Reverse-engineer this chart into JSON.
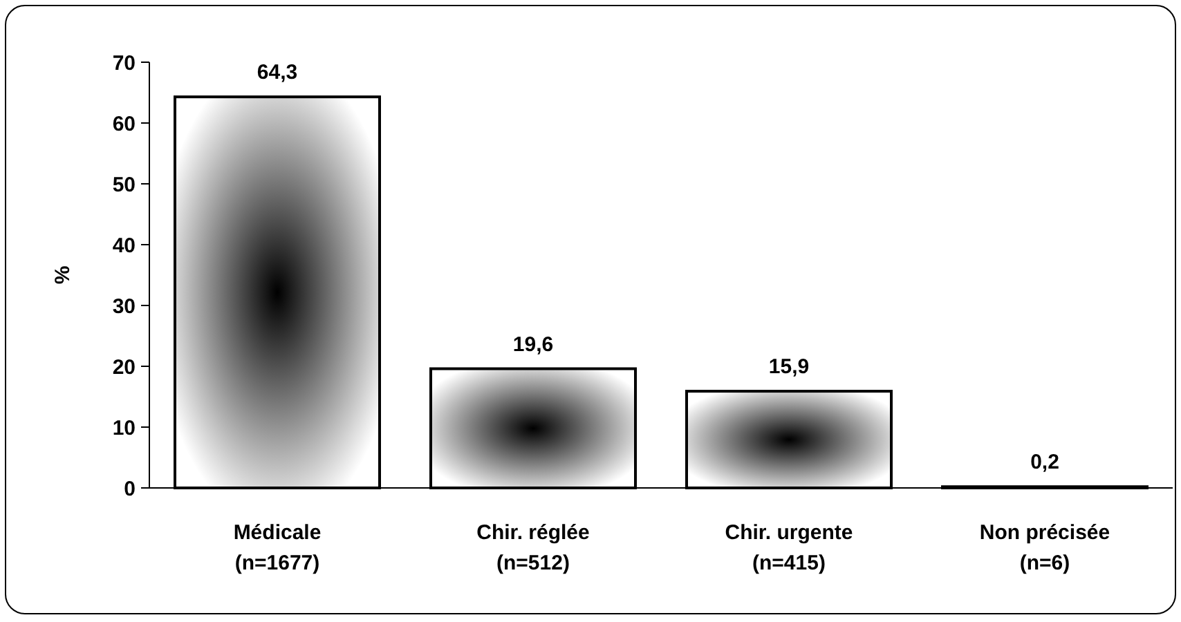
{
  "chart_data": {
    "type": "bar",
    "ylabel": "%",
    "categories": [
      "Médicale\n(n=1677)",
      "Chir. réglée\n(n=512)",
      "Chir. urgente\n(n=415)",
      "Non précisée\n(n=6)"
    ],
    "values": [
      64.3,
      19.6,
      15.9,
      0.2
    ],
    "value_labels": [
      "64,3",
      "19,6",
      "15,9",
      "0,2"
    ],
    "color": "#000000",
    "ylim": [
      0,
      70
    ],
    "yticks": [
      0,
      10,
      20,
      30,
      40,
      50,
      60,
      70
    ],
    "grid": false
  }
}
